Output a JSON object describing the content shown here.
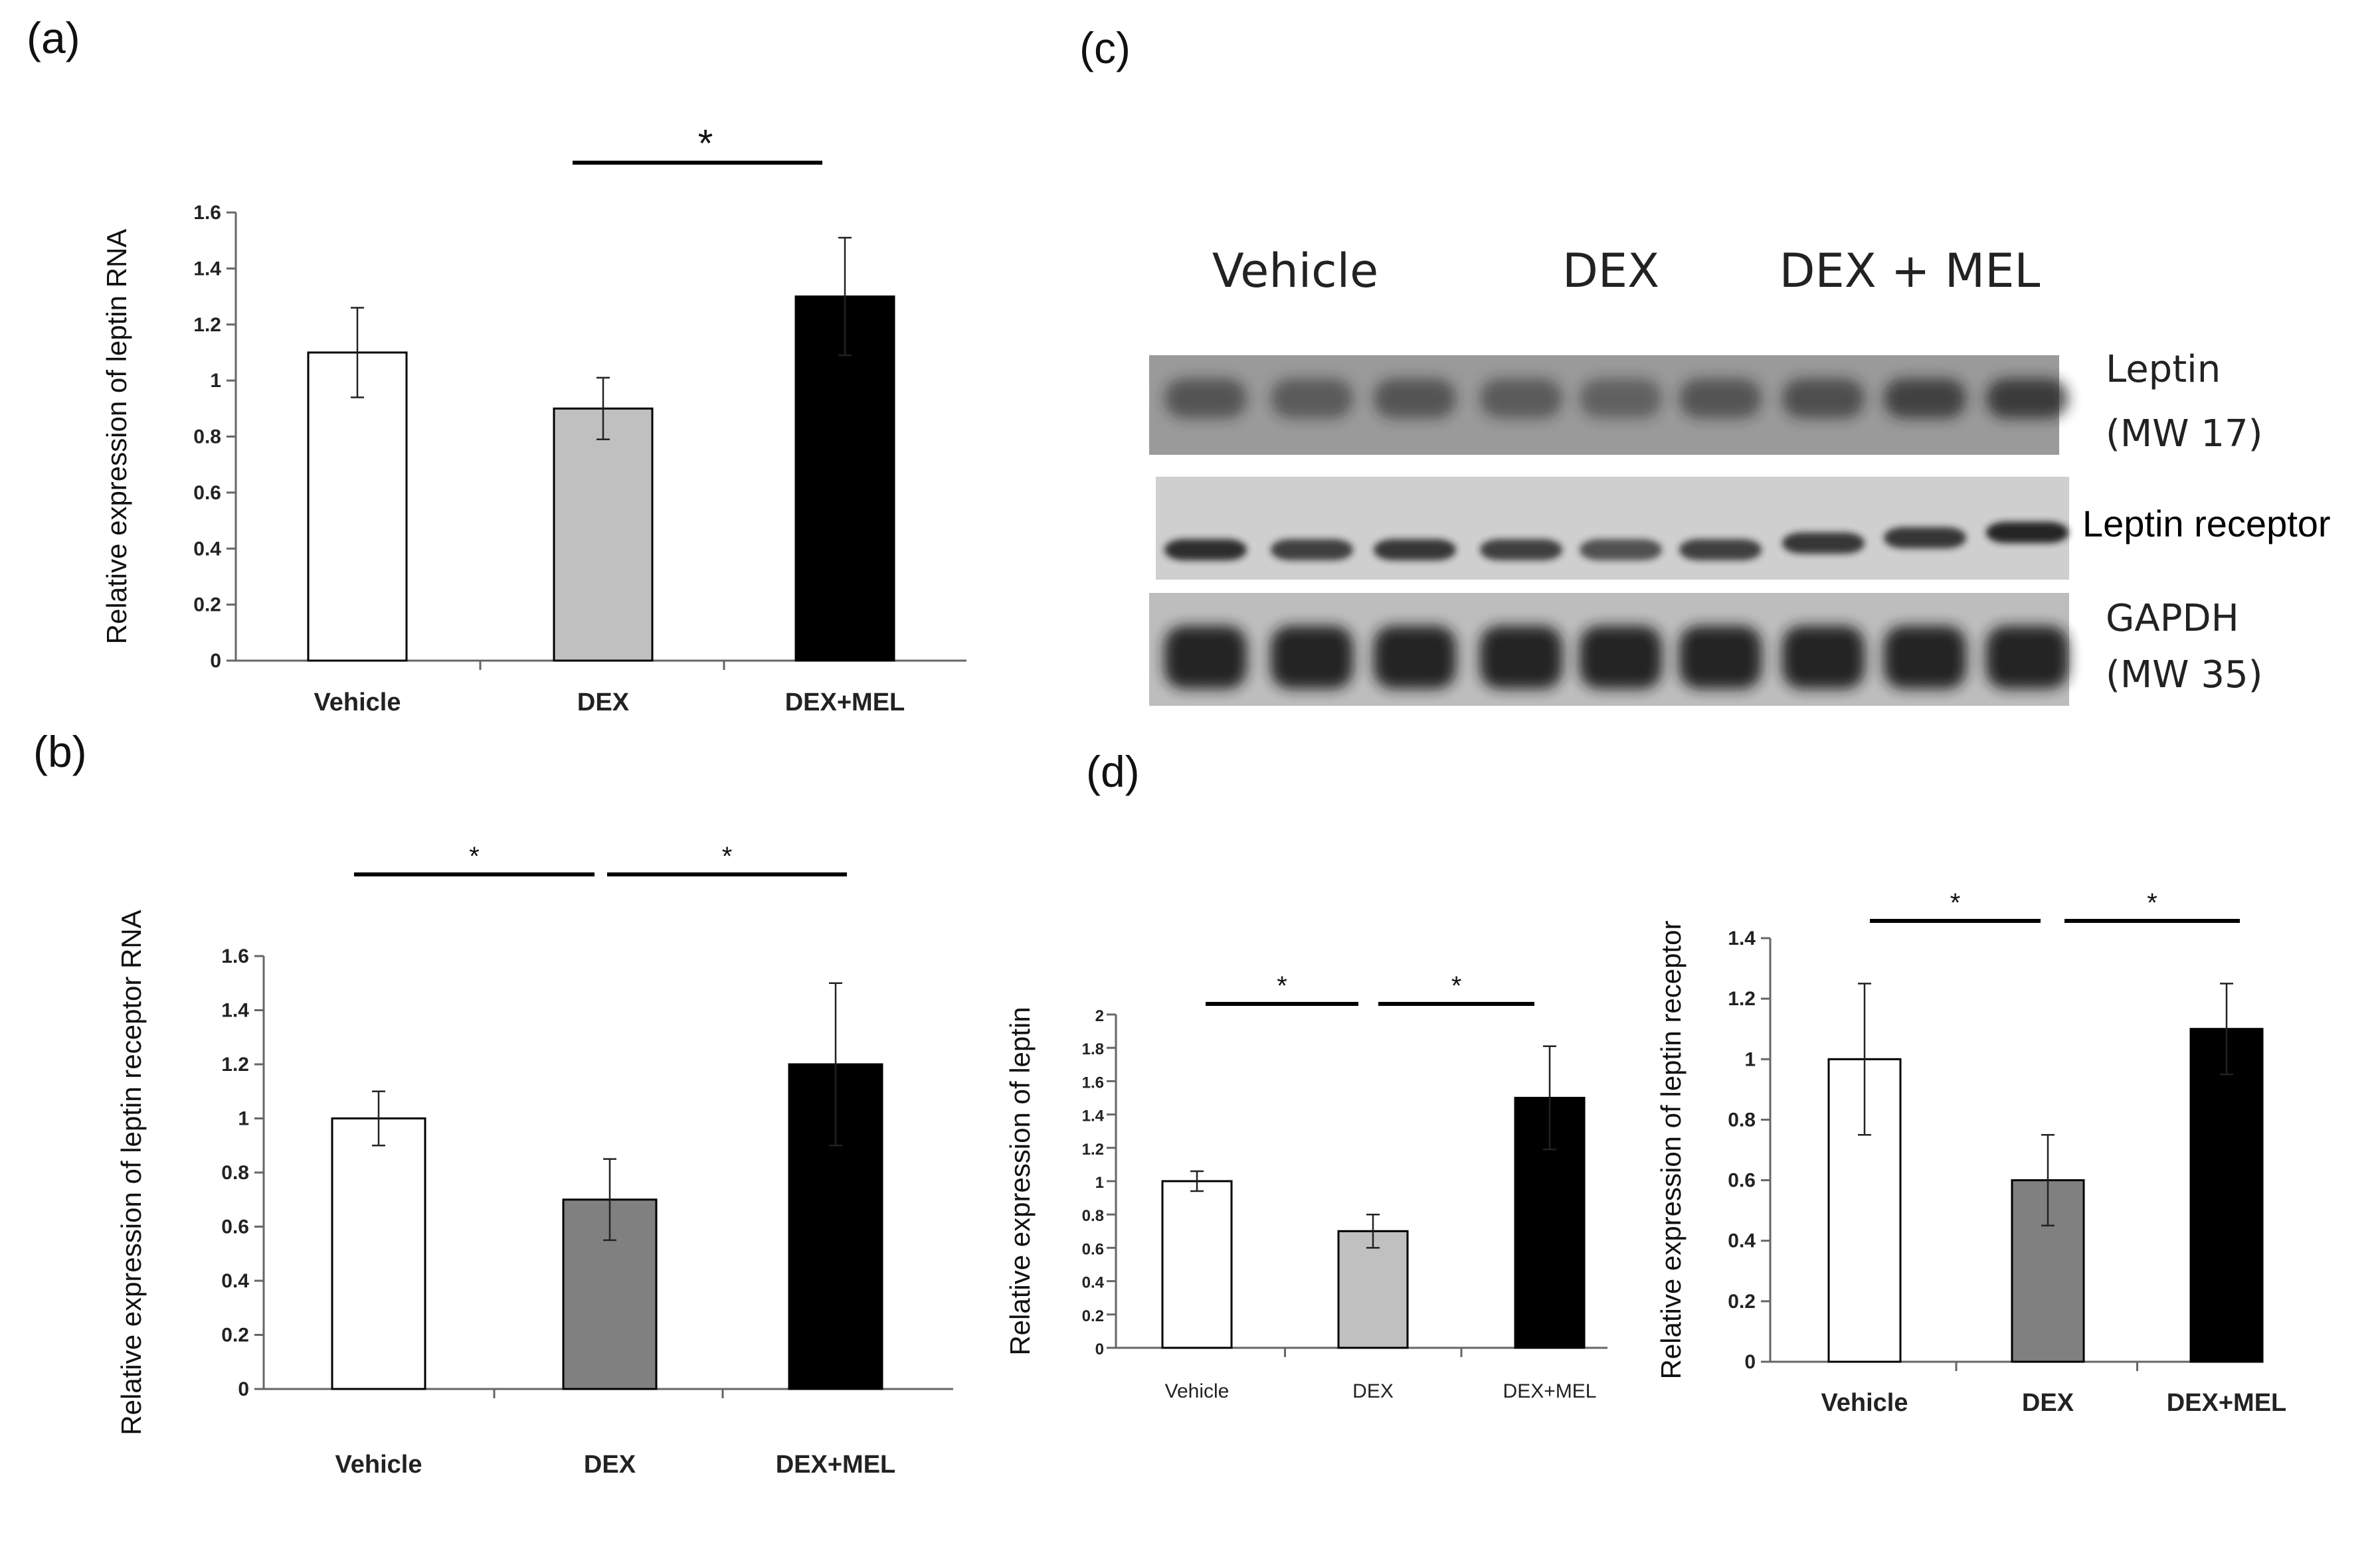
{
  "panels": {
    "a": "(a)",
    "b": "(b)",
    "c": "(c)",
    "d": "(d)"
  },
  "chart_data": [
    {
      "id": "a",
      "type": "bar",
      "categories": [
        "Vehicle",
        "DEX",
        "DEX+MEL"
      ],
      "values": [
        1.1,
        0.9,
        1.3
      ],
      "errors": [
        0.16,
        0.11,
        0.21
      ],
      "colors": [
        "#ffffff",
        "#c0c0c0",
        "#000000"
      ],
      "ylabel": "Relative expression of leptin RNA",
      "ylim": [
        0,
        1.6
      ],
      "yticks": [
        "0",
        "0.2",
        "0.4",
        "0.6",
        "0.8",
        "1",
        "1.2",
        "1.4",
        "1.6"
      ],
      "significance": [
        {
          "from": 1,
          "to": 2,
          "label": "*"
        }
      ]
    },
    {
      "id": "b",
      "type": "bar",
      "categories": [
        "Vehicle",
        "DEX",
        "DEX+MEL"
      ],
      "values": [
        1.0,
        0.7,
        1.2
      ],
      "errors": [
        0.1,
        0.15,
        0.3
      ],
      "colors": [
        "#ffffff",
        "#808080",
        "#000000"
      ],
      "ylabel": "Relative expression of leptin receptor RNA",
      "ylim": [
        0,
        1.6
      ],
      "yticks": [
        "0",
        "0.2",
        "0.4",
        "0.6",
        "0.8",
        "1",
        "1.2",
        "1.4",
        "1.6"
      ],
      "significance": [
        {
          "from": 0,
          "to": 1,
          "label": "*"
        },
        {
          "from": 1,
          "to": 2,
          "label": "*"
        }
      ]
    },
    {
      "id": "d-left",
      "type": "bar",
      "categories": [
        "Vehicle",
        "DEX",
        "DEX+MEL"
      ],
      "values": [
        1.0,
        0.7,
        1.5
      ],
      "errors": [
        0.06,
        0.1,
        0.31
      ],
      "colors": [
        "#ffffff",
        "#c0c0c0",
        "#000000"
      ],
      "ylabel": "Relative expression of leptin",
      "ylim": [
        0,
        2
      ],
      "yticks": [
        "0",
        "0.2",
        "0.4",
        "0.6",
        "0.8",
        "1",
        "1.2",
        "1.4",
        "1.6",
        "1.8",
        "2"
      ],
      "significance": [
        {
          "from": 0,
          "to": 1,
          "label": "*"
        },
        {
          "from": 1,
          "to": 2,
          "label": "*"
        }
      ]
    },
    {
      "id": "d-right",
      "type": "bar",
      "categories": [
        "Vehicle",
        "DEX",
        "DEX+MEL"
      ],
      "values": [
        1.0,
        0.6,
        1.1
      ],
      "errors": [
        0.25,
        0.15,
        0.15
      ],
      "colors": [
        "#ffffff",
        "#808080",
        "#000000"
      ],
      "ylabel": "Relative expression of leptin receptor",
      "ylim": [
        0,
        1.4
      ],
      "yticks": [
        "0",
        "0.2",
        "0.4",
        "0.6",
        "0.8",
        "1",
        "1.2",
        "1.4"
      ],
      "significance": [
        {
          "from": 0,
          "to": 1,
          "label": "*"
        },
        {
          "from": 1,
          "to": 2,
          "label": "*"
        }
      ]
    }
  ],
  "blot": {
    "groups": [
      "Vehicle",
      "DEX",
      "DEX + MEL"
    ],
    "rows": [
      {
        "label": "Leptin",
        "sublabel": "(MW 17)"
      },
      {
        "label": "Leptin receptor",
        "sublabel": ""
      },
      {
        "label": "GAPDH",
        "sublabel": "(MW 35)"
      }
    ]
  }
}
